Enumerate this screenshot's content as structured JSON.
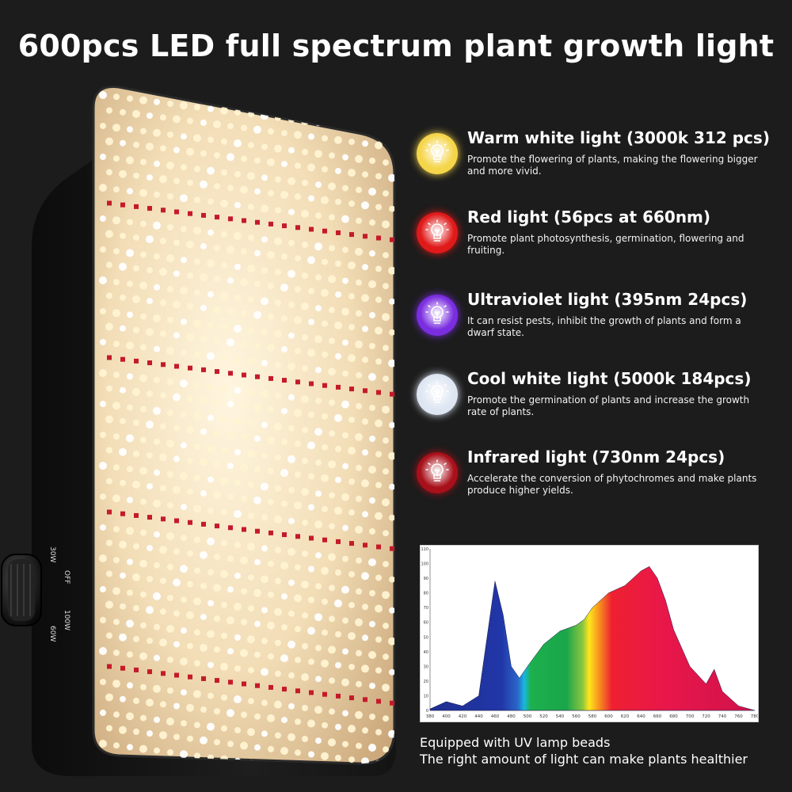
{
  "title": "600pcs LED full spectrum plant growth light",
  "features": [
    {
      "title": "Warm white light (3000k 312 pcs)",
      "desc": "Promote the flowering of plants, making the flowering bigger and more vivid.",
      "color": "#f5d54a",
      "icon": "warm-white-bulb-icon"
    },
    {
      "title": "Red light (56pcs at 660nm)",
      "desc": "Promote plant photosynthesis, germination, flowering and fruiting.",
      "color": "#e01919",
      "icon": "red-bulb-icon"
    },
    {
      "title": "Ultraviolet light (395nm 24pcs)",
      "desc": "It can resist pests, inhibit the growth of plants and form a dwarf state.",
      "color": "#7a2ee0",
      "icon": "ultraviolet-bulb-icon"
    },
    {
      "title": "Cool white light (5000k 184pcs)",
      "desc": "Promote the germination of plants and increase the growth rate of plants.",
      "color": "#dde6f2",
      "icon": "cool-white-bulb-icon"
    },
    {
      "title": "Infrared light (730nm 24pcs)",
      "desc": "Accelerate the conversion of phytochromes and make plants produce higher yields.",
      "color": "#a8101a",
      "icon": "infrared-bulb-icon"
    }
  ],
  "knob_labels": [
    "30W",
    "OFF",
    "100W",
    "60W"
  ],
  "chart_data": {
    "type": "area",
    "x": [
      380,
      400,
      420,
      440,
      460,
      470,
      480,
      490,
      500,
      520,
      540,
      560,
      570,
      580,
      600,
      620,
      640,
      650,
      660,
      670,
      680,
      700,
      720,
      730,
      740,
      760,
      780
    ],
    "y": [
      1,
      6,
      3,
      10,
      88,
      65,
      30,
      22,
      30,
      45,
      54,
      58,
      62,
      70,
      80,
      85,
      95,
      98,
      90,
      75,
      55,
      30,
      18,
      28,
      13,
      3,
      0
    ],
    "x_ticks": [
      "380",
      "400",
      "420",
      "440",
      "460",
      "480",
      "500",
      "520",
      "540",
      "560",
      "580",
      "600",
      "620",
      "640",
      "660",
      "680",
      "700",
      "720",
      "740",
      "760",
      "780"
    ],
    "y_ticks": [
      "0",
      "10",
      "20",
      "30",
      "40",
      "50",
      "60",
      "70",
      "80",
      "90",
      "100",
      "110"
    ],
    "xlim": [
      380,
      780
    ],
    "ylim": [
      0,
      110
    ],
    "grid": false
  },
  "caption": {
    "line1": "Equipped with UV lamp beads",
    "line2": "The right amount of light can make plants healthier"
  }
}
